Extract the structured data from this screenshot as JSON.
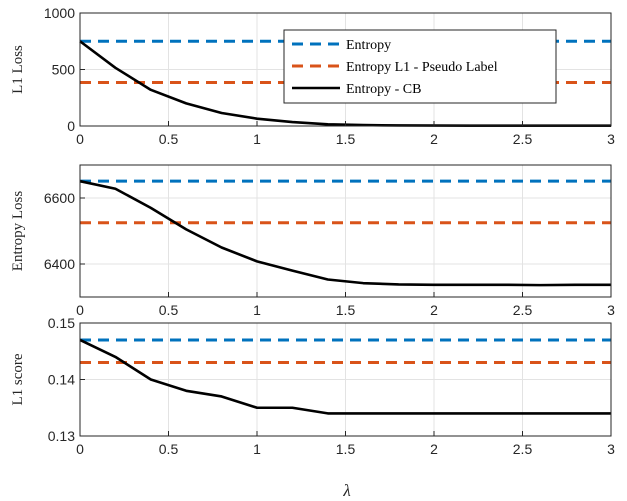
{
  "figure": {
    "xlabel": "λ"
  },
  "chart_data": [
    {
      "type": "line",
      "ylabel": "L1 Loss",
      "xlim": [
        0,
        3
      ],
      "ylim": [
        0,
        1000
      ],
      "xticks": [
        0,
        0.5,
        1,
        1.5,
        2,
        2.5,
        3
      ],
      "xtick_labels": [
        "0",
        "0.5",
        "1",
        "1.5",
        "2",
        "2.5",
        "3"
      ],
      "yticks": [
        0,
        500,
        1000
      ],
      "ytick_labels": [
        "0",
        "500",
        "1000"
      ],
      "grid": true,
      "legend": {
        "placement": "top-right",
        "entries": [
          "Entropy",
          "Entropy L1 - Pseudo Label",
          "Entropy - CB"
        ]
      },
      "series": [
        {
          "name": "Entropy",
          "color": "#0072BD",
          "style": "dashed",
          "x": [
            0,
            3
          ],
          "y": [
            750,
            750
          ]
        },
        {
          "name": "Entropy L1 - Pseudo Label",
          "color": "#D95319",
          "style": "dashed",
          "x": [
            0,
            3
          ],
          "y": [
            385,
            385
          ]
        },
        {
          "name": "Entropy - CB",
          "color": "#000000",
          "style": "solid",
          "x": [
            0,
            0.2,
            0.4,
            0.6,
            0.8,
            1.0,
            1.2,
            1.4,
            1.6,
            1.8,
            2.0,
            2.2,
            2.4,
            2.6,
            2.8,
            3.0
          ],
          "y": [
            750,
            515,
            320,
            200,
            115,
            65,
            35,
            15,
            8,
            5,
            4,
            3,
            3,
            3,
            3,
            3
          ]
        }
      ]
    },
    {
      "type": "line",
      "ylabel": "Entropy Loss",
      "xlim": [
        0,
        3
      ],
      "ylim": [
        6300,
        6700
      ],
      "xticks": [
        0,
        0.5,
        1,
        1.5,
        2,
        2.5,
        3
      ],
      "xtick_labels": [
        "0",
        "0.5",
        "1",
        "1.5",
        "2",
        "2.5",
        "3"
      ],
      "yticks": [
        6400,
        6600
      ],
      "ytick_labels": [
        "6400",
        "6600"
      ],
      "grid": true,
      "series": [
        {
          "name": "Entropy",
          "color": "#0072BD",
          "style": "dashed",
          "x": [
            0,
            3
          ],
          "y": [
            6651,
            6651
          ]
        },
        {
          "name": "Entropy L1 - Pseudo Label",
          "color": "#D95319",
          "style": "dashed",
          "x": [
            0,
            3
          ],
          "y": [
            6525,
            6525
          ]
        },
        {
          "name": "Entropy - CB",
          "color": "#000000",
          "style": "solid",
          "x": [
            0,
            0.2,
            0.4,
            0.6,
            0.8,
            1.0,
            1.2,
            1.4,
            1.6,
            1.8,
            2.0,
            2.2,
            2.4,
            2.6,
            2.8,
            3.0
          ],
          "y": [
            6651,
            6628,
            6570,
            6505,
            6450,
            6408,
            6380,
            6353,
            6342,
            6338,
            6337,
            6337,
            6337,
            6336,
            6337,
            6337
          ]
        }
      ]
    },
    {
      "type": "line",
      "ylabel": "L1 score",
      "xlim": [
        0,
        3
      ],
      "ylim": [
        0.13,
        0.15
      ],
      "xticks": [
        0,
        0.5,
        1,
        1.5,
        2,
        2.5,
        3
      ],
      "xtick_labels": [
        "0",
        "0.5",
        "1",
        "1.5",
        "2",
        "2.5",
        "3"
      ],
      "yticks": [
        0.13,
        0.14,
        0.15
      ],
      "ytick_labels": [
        "0.13",
        "0.14",
        "0.15"
      ],
      "grid": true,
      "series": [
        {
          "name": "Entropy",
          "color": "#0072BD",
          "style": "dashed",
          "x": [
            0,
            3
          ],
          "y": [
            0.147,
            0.147
          ]
        },
        {
          "name": "Entropy L1 - Pseudo Label",
          "color": "#D95319",
          "style": "dashed",
          "x": [
            0,
            3
          ],
          "y": [
            0.143,
            0.143
          ]
        },
        {
          "name": "Entropy - CB",
          "color": "#000000",
          "style": "solid",
          "x": [
            0,
            0.2,
            0.4,
            0.6,
            0.8,
            1.0,
            1.2,
            1.4,
            1.6,
            1.8,
            2.0,
            2.2,
            2.4,
            2.6,
            2.8,
            3.0
          ],
          "y": [
            0.147,
            0.144,
            0.14,
            0.138,
            0.137,
            0.135,
            0.135,
            0.134,
            0.134,
            0.134,
            0.134,
            0.134,
            0.134,
            0.134,
            0.134,
            0.134
          ]
        }
      ]
    }
  ]
}
